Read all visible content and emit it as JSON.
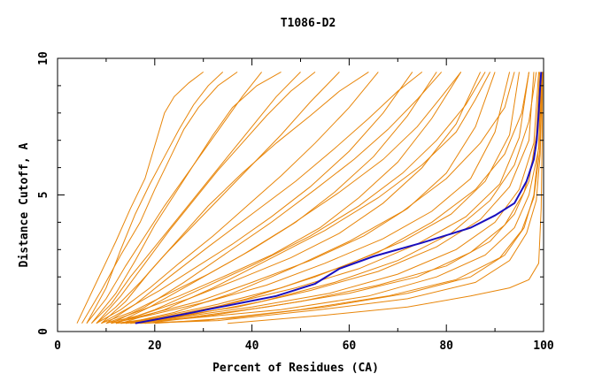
{
  "chart_data": {
    "type": "line",
    "title": "T1086-D2",
    "xlabel": "Percent of Residues (CA)",
    "ylabel": "Distance Cutoff, A",
    "xlim": [
      0,
      100
    ],
    "ylim": [
      0,
      10
    ],
    "xticks": [
      0,
      20,
      40,
      60,
      80,
      100
    ],
    "yticks": [
      0,
      5,
      10
    ],
    "grid": false,
    "legend": "none",
    "colors": {
      "models": "#e8860a",
      "highlight": "#1a0fbf",
      "frame": "#000000"
    },
    "highlight_series": {
      "x": [
        16,
        25,
        35,
        45,
        53,
        58,
        65,
        75,
        85,
        90,
        94,
        96.5,
        98,
        98.6,
        99,
        99.3,
        99.5
      ],
      "y": [
        0.3,
        0.6,
        0.95,
        1.3,
        1.75,
        2.3,
        2.75,
        3.25,
        3.8,
        4.25,
        4.7,
        5.5,
        6.3,
        7.0,
        8.0,
        9.0,
        9.5
      ]
    },
    "model_series": [
      {
        "x": [
          4,
          8,
          12,
          15,
          18,
          20,
          22,
          24,
          27,
          30
        ],
        "y": [
          0.3,
          1.8,
          3.3,
          4.5,
          5.6,
          6.8,
          8.0,
          8.6,
          9.1,
          9.5
        ]
      },
      {
        "x": [
          5,
          9,
          13,
          17,
          20,
          23,
          26,
          29,
          33,
          37
        ],
        "y": [
          0.3,
          1.5,
          2.8,
          4.0,
          5.2,
          6.3,
          7.4,
          8.2,
          9.0,
          9.5
        ]
      },
      {
        "x": [
          6,
          10,
          14,
          18,
          22,
          26,
          30,
          34,
          38,
          42
        ],
        "y": [
          0.3,
          1.2,
          2.4,
          3.5,
          4.6,
          5.6,
          6.6,
          7.6,
          8.6,
          9.5
        ]
      },
      {
        "x": [
          7,
          11,
          15,
          20,
          25,
          30,
          35,
          40,
          45,
          50
        ],
        "y": [
          0.3,
          1.0,
          2.0,
          3.1,
          4.2,
          5.3,
          6.4,
          7.5,
          8.6,
          9.5
        ]
      },
      {
        "x": [
          8,
          12,
          17,
          22,
          28,
          34,
          40,
          46,
          52,
          58
        ],
        "y": [
          0.3,
          0.9,
          1.8,
          2.8,
          3.9,
          5.0,
          6.1,
          7.2,
          8.4,
          9.5
        ]
      },
      {
        "x": [
          8,
          13,
          19,
          25,
          32,
          39,
          46,
          53,
          60,
          66
        ],
        "y": [
          0.3,
          0.8,
          1.6,
          2.5,
          3.5,
          4.6,
          5.7,
          6.9,
          8.2,
          9.5
        ]
      },
      {
        "x": [
          9,
          14,
          21,
          28,
          36,
          44,
          52,
          60,
          67,
          73
        ],
        "y": [
          0.3,
          0.8,
          1.5,
          2.3,
          3.2,
          4.2,
          5.3,
          6.6,
          8.0,
          9.5
        ]
      },
      {
        "x": [
          9,
          15,
          23,
          31,
          40,
          49,
          57,
          65,
          72,
          78
        ],
        "y": [
          0.3,
          0.7,
          1.4,
          2.1,
          3.0,
          4.0,
          5.1,
          6.4,
          7.9,
          9.5
        ]
      },
      {
        "x": [
          10,
          16,
          25,
          34,
          44,
          54,
          62,
          70,
          77,
          83
        ],
        "y": [
          0.3,
          0.7,
          1.3,
          2.0,
          2.8,
          3.8,
          4.9,
          6.2,
          7.8,
          9.5
        ]
      },
      {
        "x": [
          10,
          17,
          27,
          37,
          48,
          58,
          67,
          75,
          82,
          87
        ],
        "y": [
          0.3,
          0.6,
          1.2,
          1.9,
          2.7,
          3.6,
          4.7,
          6.0,
          7.6,
          9.5
        ]
      },
      {
        "x": [
          11,
          18,
          29,
          40,
          52,
          63,
          72,
          80,
          86,
          90
        ],
        "y": [
          0.3,
          0.6,
          1.1,
          1.8,
          2.6,
          3.5,
          4.5,
          5.8,
          7.5,
          9.5
        ]
      },
      {
        "x": [
          11,
          19,
          31,
          43,
          55,
          67,
          77,
          85,
          90,
          93
        ],
        "y": [
          0.3,
          0.6,
          1.1,
          1.7,
          2.5,
          3.4,
          4.4,
          5.6,
          7.3,
          9.5
        ]
      },
      {
        "x": [
          12,
          20,
          33,
          46,
          59,
          71,
          81,
          88,
          93,
          95
        ],
        "y": [
          0.3,
          0.5,
          1.0,
          1.6,
          2.4,
          3.3,
          4.3,
          5.5,
          7.2,
          9.5
        ]
      },
      {
        "x": [
          12,
          21,
          35,
          49,
          62,
          74,
          84,
          91,
          95,
          97
        ],
        "y": [
          0.3,
          0.5,
          1.0,
          1.6,
          2.3,
          3.2,
          4.2,
          5.4,
          7.1,
          9.5
        ]
      },
      {
        "x": [
          13,
          22,
          37,
          52,
          66,
          78,
          87,
          93,
          97,
          98
        ],
        "y": [
          0.3,
          0.5,
          0.9,
          1.5,
          2.2,
          3.1,
          4.1,
          5.3,
          7.0,
          9.5
        ]
      },
      {
        "x": [
          13,
          24,
          40,
          56,
          70,
          82,
          90,
          95,
          98,
          99
        ],
        "y": [
          0.3,
          0.5,
          0.9,
          1.4,
          2.1,
          3.0,
          4.0,
          5.2,
          6.9,
          9.5
        ]
      },
      {
        "x": [
          14,
          26,
          43,
          60,
          74,
          85,
          92,
          96,
          98.5,
          99.5
        ],
        "y": [
          0.3,
          0.5,
          0.9,
          1.4,
          2.0,
          2.9,
          3.9,
          5.1,
          6.8,
          9.5
        ]
      },
      {
        "x": [
          15,
          28,
          46,
          64,
          78,
          88,
          94,
          97,
          99,
          99.6
        ],
        "y": [
          0.3,
          0.5,
          0.8,
          1.3,
          2.0,
          2.8,
          3.8,
          5.0,
          6.7,
          9.5
        ]
      },
      {
        "x": [
          16,
          30,
          50,
          68,
          82,
          91,
          95.5,
          98,
          99.2,
          99.7
        ],
        "y": [
          0.3,
          0.4,
          0.8,
          1.3,
          1.9,
          2.7,
          3.7,
          4.9,
          6.6,
          9.5
        ]
      },
      {
        "x": [
          17,
          33,
          54,
          72,
          86,
          93,
          96.5,
          98.5,
          99.3,
          99.8
        ],
        "y": [
          0.3,
          0.4,
          0.8,
          1.2,
          1.8,
          2.6,
          3.6,
          4.8,
          6.5,
          9.5
        ]
      },
      {
        "x": [
          7,
          12,
          16,
          20,
          24,
          28,
          32,
          36,
          41,
          46
        ],
        "y": [
          0.3,
          1.4,
          2.6,
          3.9,
          5.0,
          6.1,
          7.2,
          8.2,
          9.0,
          9.5
        ]
      },
      {
        "x": [
          9,
          14,
          19,
          25,
          31,
          38,
          45,
          52,
          58,
          64
        ],
        "y": [
          0.3,
          1.1,
          2.2,
          3.4,
          4.6,
          5.8,
          6.9,
          7.9,
          8.8,
          9.5
        ]
      },
      {
        "x": [
          10,
          16,
          23,
          31,
          40,
          49,
          57,
          64,
          70,
          75
        ],
        "y": [
          0.3,
          1.0,
          2.0,
          3.1,
          4.3,
          5.5,
          6.7,
          7.8,
          8.8,
          9.5
        ]
      },
      {
        "x": [
          12,
          19,
          28,
          38,
          48,
          58,
          67,
          74,
          79,
          83
        ],
        "y": [
          0.3,
          0.9,
          1.8,
          2.8,
          3.9,
          5.1,
          6.3,
          7.5,
          8.6,
          9.5
        ]
      },
      {
        "x": [
          13,
          22,
          32,
          43,
          55,
          66,
          75,
          82,
          86,
          89
        ],
        "y": [
          0.3,
          0.8,
          1.6,
          2.6,
          3.7,
          4.9,
          6.1,
          7.3,
          8.5,
          9.5
        ]
      },
      {
        "x": [
          11,
          18,
          26,
          35,
          44,
          53,
          61,
          68,
          74,
          79
        ],
        "y": [
          0.3,
          0.9,
          1.8,
          2.9,
          4.0,
          5.2,
          6.3,
          7.4,
          8.5,
          9.5
        ]
      },
      {
        "x": [
          14,
          24,
          36,
          48,
          60,
          71,
          80,
          87,
          92,
          94
        ],
        "y": [
          0.3,
          0.7,
          1.4,
          2.3,
          3.3,
          4.4,
          5.6,
          6.9,
          8.2,
          9.5
        ]
      },
      {
        "x": [
          15,
          26,
          39,
          53,
          66,
          77,
          86,
          92,
          95.5,
          97
        ],
        "y": [
          0.3,
          0.6,
          1.2,
          2.0,
          2.9,
          4.0,
          5.2,
          6.5,
          8.0,
          9.5
        ]
      },
      {
        "x": [
          6,
          10,
          13,
          16,
          19,
          22,
          25,
          28,
          31,
          34
        ],
        "y": [
          0.3,
          1.6,
          3.0,
          4.3,
          5.4,
          6.4,
          7.4,
          8.3,
          9.0,
          9.5
        ]
      },
      {
        "x": [
          8,
          13,
          18,
          23,
          28,
          33,
          38,
          43,
          48,
          53
        ],
        "y": [
          0.3,
          1.3,
          2.5,
          3.7,
          4.8,
          5.9,
          6.9,
          7.9,
          8.8,
          9.5
        ]
      },
      {
        "x": [
          35,
          55,
          72,
          85,
          93,
          97,
          99,
          99.5,
          99.7,
          99.8
        ],
        "y": [
          0.3,
          0.6,
          0.9,
          1.3,
          1.6,
          1.9,
          2.5,
          4.5,
          7.0,
          9.5
        ]
      },
      {
        "x": [
          18,
          32,
          50,
          66,
          80,
          89,
          94,
          97,
          98.5,
          99.2
        ],
        "y": [
          0.3,
          0.6,
          1.1,
          1.7,
          2.4,
          3.3,
          4.3,
          5.5,
          7.2,
          9.5
        ]
      },
      {
        "x": [
          20,
          36,
          55,
          72,
          85,
          92,
          96,
          98,
          99,
          99.5
        ],
        "y": [
          0.3,
          0.5,
          0.9,
          1.4,
          2.0,
          2.8,
          3.8,
          5.0,
          6.8,
          9.5
        ]
      },
      {
        "x": [
          12,
          20,
          30,
          41,
          52,
          62,
          71,
          78,
          84,
          88
        ],
        "y": [
          0.3,
          0.8,
          1.6,
          2.5,
          3.5,
          4.6,
          5.8,
          7.0,
          8.3,
          9.5
        ]
      },
      {
        "x": [
          16,
          27,
          42,
          57,
          70,
          81,
          89,
          94,
          97,
          98.5
        ],
        "y": [
          0.3,
          0.6,
          1.1,
          1.8,
          2.6,
          3.6,
          4.8,
          6.1,
          7.7,
          9.5
        ]
      }
    ]
  }
}
